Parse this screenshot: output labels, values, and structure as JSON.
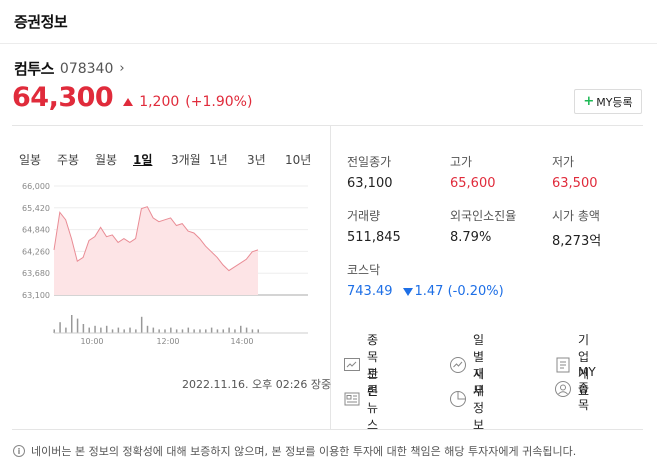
{
  "section": {
    "title": "증권정보"
  },
  "stock": {
    "name": "컴투스",
    "code": "078340",
    "chevron": "›",
    "price": "64,300",
    "change": "1,200",
    "change_pct": "(+1.90%)",
    "up_color": "#e02b3b"
  },
  "my_button": {
    "label": "MY등록",
    "plus": "+"
  },
  "periods": [
    "일봉",
    "주봉",
    "월봉",
    "1일",
    "3개월",
    "1년",
    "3년",
    "10년"
  ],
  "active_period": "1일",
  "chart_data": {
    "type": "area",
    "ylim": [
      63100,
      66000
    ],
    "y_ticks": [
      "66,000",
      "65,420",
      "64,840",
      "64,260",
      "63,680",
      "63,100"
    ],
    "x_ticks": [
      "10:00",
      "12:00",
      "14:00"
    ],
    "series": [
      {
        "values": [
          64300,
          65300,
          65100,
          64600,
          64000,
          64100,
          64550,
          64650,
          64900,
          64650,
          64700,
          64500,
          64600,
          64500,
          64600,
          65400,
          65450,
          65150,
          65050,
          65100,
          65150,
          64950,
          65000,
          64800,
          64750,
          64600,
          64400,
          64250,
          64100,
          63900,
          63750,
          63850,
          63950,
          64050,
          64250,
          64300
        ]
      }
    ],
    "volume": [
      2,
      6,
      3,
      10,
      8,
      5,
      3,
      4,
      3,
      4,
      2,
      3,
      2,
      3,
      2,
      9,
      4,
      3,
      2,
      2,
      3,
      2,
      2,
      3,
      2,
      2,
      2,
      3,
      2,
      2,
      3,
      2,
      4,
      3,
      2,
      2
    ]
  },
  "timestamp": "2022.11.16. 오후 02:26 장중",
  "stats": {
    "prev_close": {
      "label": "전일종가",
      "value": "63,100"
    },
    "high": {
      "label": "고가",
      "value": "65,600"
    },
    "low": {
      "label": "저가",
      "value": "63,500"
    },
    "volume": {
      "label": "거래량",
      "value": "511,845"
    },
    "foreign": {
      "label": "외국인소진율",
      "value": "8.79%"
    },
    "market_cap": {
      "label": "시가 총액",
      "value": "8,273억"
    },
    "index": {
      "label": "코스닥",
      "value": "743.49",
      "change": "1.47 (-0.20%)"
    }
  },
  "links": {
    "discussion": "종목토론",
    "daily": "일별시세",
    "company": "기업개요",
    "news": "관련뉴스",
    "finance": "재무정보",
    "my": "MY종목"
  },
  "notice": "네이버는 본 정보의 정확성에 대해 보증하지 않으며, 본 정보를 이용한 투자에 대한 책임은 해당 투자자에게 귀속됩니다."
}
